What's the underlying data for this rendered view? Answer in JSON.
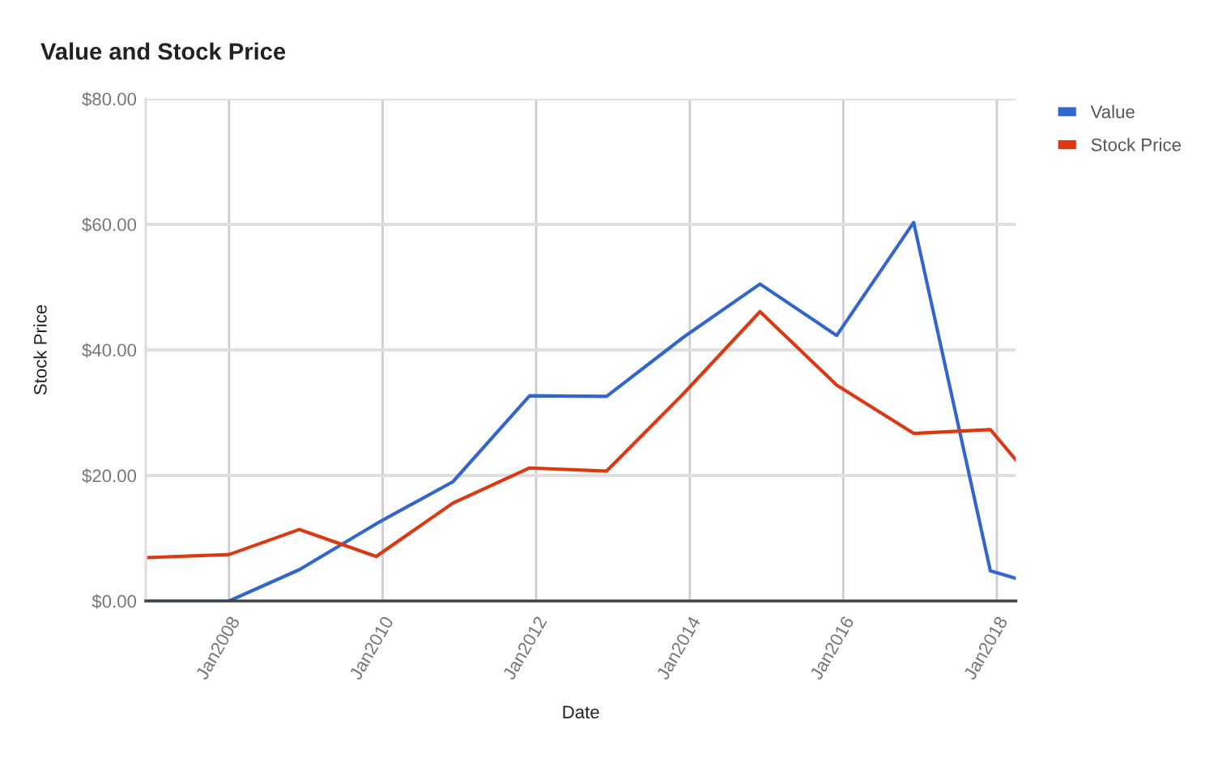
{
  "chart_data": {
    "type": "line",
    "title": "Value and Stock Price",
    "xlabel": "Date",
    "ylabel": "Stock Price",
    "x": [
      "2006-12",
      "2008-01",
      "2008-12",
      "2009-12",
      "2010-12",
      "2011-12",
      "2012-12",
      "2013-12",
      "2014-12",
      "2015-12",
      "2016-12",
      "2017-12",
      "2018-04"
    ],
    "series": [
      {
        "name": "Value",
        "color": "#3366cc",
        "values": [
          0,
          0,
          5.0,
          12.3,
          19.0,
          32.7,
          32.6,
          42.0,
          50.5,
          42.3,
          60.3,
          4.8,
          3.6
        ]
      },
      {
        "name": "Stock Price",
        "color": "#dc3912",
        "values": [
          6.9,
          7.4,
          11.4,
          7.1,
          15.6,
          21.2,
          20.7,
          33.0,
          46.1,
          34.4,
          26.7,
          27.3,
          22.5
        ]
      }
    ],
    "xlim": [
      "2006-12",
      "2018-04"
    ],
    "ylim": [
      0,
      80
    ],
    "yticks": [
      {
        "value": 0,
        "label": "$0.00"
      },
      {
        "value": 20,
        "label": "$20.00"
      },
      {
        "value": 40,
        "label": "$40.00"
      },
      {
        "value": 60,
        "label": "$60.00"
      },
      {
        "value": 80,
        "label": "$80.00"
      }
    ],
    "xticks": [
      {
        "value": "2008-01",
        "label": "Jan2008"
      },
      {
        "value": "2010-01",
        "label": "Jan2010"
      },
      {
        "value": "2012-01",
        "label": "Jan2012"
      },
      {
        "value": "2014-01",
        "label": "Jan2014"
      },
      {
        "value": "2016-01",
        "label": "Jan2016"
      },
      {
        "value": "2018-01",
        "label": "Jan2018"
      }
    ],
    "grid": true,
    "legend": "top right"
  }
}
